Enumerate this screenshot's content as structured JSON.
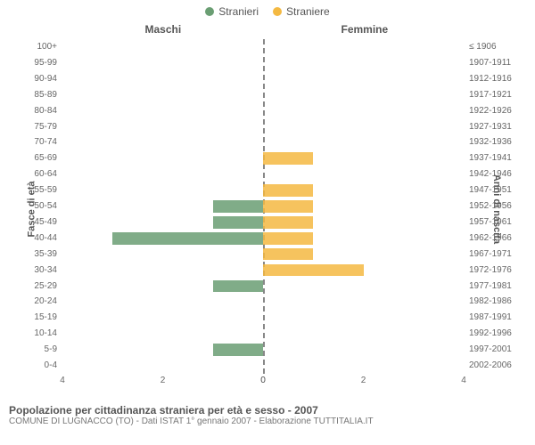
{
  "legend": {
    "male": {
      "label": "Stranieri",
      "color": "#6a9e73"
    },
    "female": {
      "label": "Straniere",
      "color": "#f4b942"
    }
  },
  "columns": {
    "left": "Maschi",
    "right": "Femmine"
  },
  "y_axis_left_title": "Fasce di età",
  "y_axis_right_title": "Anni di nascita",
  "x_axis": {
    "max": 4,
    "ticks_left": [
      4,
      2,
      0
    ],
    "ticks_right": [
      0,
      2,
      4
    ]
  },
  "rows": [
    {
      "age": "100+",
      "birth": "≤ 1906",
      "m": 0,
      "f": 0
    },
    {
      "age": "95-99",
      "birth": "1907-1911",
      "m": 0,
      "f": 0
    },
    {
      "age": "90-94",
      "birth": "1912-1916",
      "m": 0,
      "f": 0
    },
    {
      "age": "85-89",
      "birth": "1917-1921",
      "m": 0,
      "f": 0
    },
    {
      "age": "80-84",
      "birth": "1922-1926",
      "m": 0,
      "f": 0
    },
    {
      "age": "75-79",
      "birth": "1927-1931",
      "m": 0,
      "f": 0
    },
    {
      "age": "70-74",
      "birth": "1932-1936",
      "m": 0,
      "f": 0
    },
    {
      "age": "65-69",
      "birth": "1937-1941",
      "m": 0,
      "f": 1
    },
    {
      "age": "60-64",
      "birth": "1942-1946",
      "m": 0,
      "f": 0
    },
    {
      "age": "55-59",
      "birth": "1947-1951",
      "m": 0,
      "f": 1
    },
    {
      "age": "50-54",
      "birth": "1952-1956",
      "m": 1,
      "f": 1
    },
    {
      "age": "45-49",
      "birth": "1957-1961",
      "m": 1,
      "f": 1
    },
    {
      "age": "40-44",
      "birth": "1962-1966",
      "m": 3,
      "f": 1
    },
    {
      "age": "35-39",
      "birth": "1967-1971",
      "m": 0,
      "f": 1
    },
    {
      "age": "30-34",
      "birth": "1972-1976",
      "m": 0,
      "f": 2
    },
    {
      "age": "25-29",
      "birth": "1977-1981",
      "m": 1,
      "f": 0
    },
    {
      "age": "20-24",
      "birth": "1982-1986",
      "m": 0,
      "f": 0
    },
    {
      "age": "15-19",
      "birth": "1987-1991",
      "m": 0,
      "f": 0
    },
    {
      "age": "10-14",
      "birth": "1992-1996",
      "m": 0,
      "f": 0
    },
    {
      "age": "5-9",
      "birth": "1997-2001",
      "m": 1,
      "f": 0
    },
    {
      "age": "0-4",
      "birth": "2002-2006",
      "m": 0,
      "f": 0
    }
  ],
  "footer": {
    "title": "Popolazione per cittadinanza straniera per età e sesso - 2007",
    "subtitle": "COMUNE DI LUGNACCO (TO) - Dati ISTAT 1° gennaio 2007 - Elaborazione TUTTITALIA.IT"
  },
  "style": {
    "background": "#ffffff",
    "text_color": "#555555",
    "grid_color": "#888888"
  }
}
